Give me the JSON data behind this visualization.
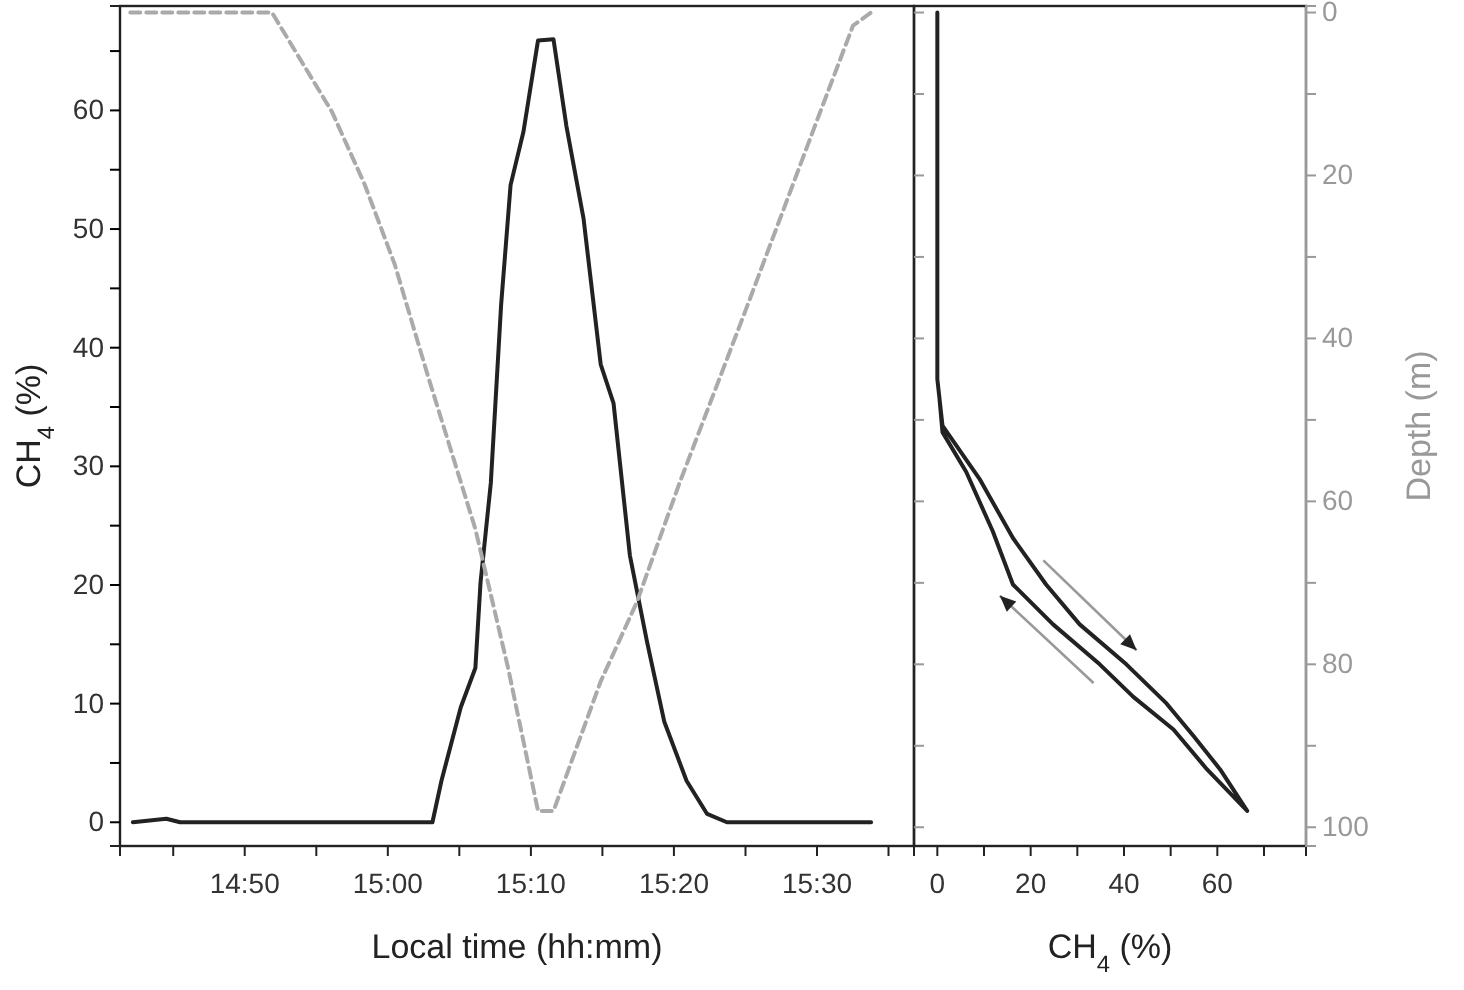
{
  "chart_data": [
    {
      "type": "line",
      "xlabel": "Local time (hh:mm)",
      "ylabel": "CH$_{4}$ (%)",
      "xlim": [
        14.688,
        15.613
      ],
      "xticks": [
        {
          "value": 14.75,
          "label": null
        },
        {
          "value": 14.8333,
          "label": "14:50"
        },
        {
          "value": 14.9167,
          "label": null
        },
        {
          "value": 15,
          "label": "15:00"
        },
        {
          "value": 15.0833,
          "label": null
        },
        {
          "value": 15.1667,
          "label": "15:10"
        },
        {
          "value": 15.25,
          "label": null
        },
        {
          "value": 15.3333,
          "label": "15:20"
        },
        {
          "value": 15.4167,
          "label": null
        },
        {
          "value": 15.5,
          "label": "15:30"
        },
        {
          "value": 15.5833,
          "label": null
        }
      ],
      "ylim": [
        -2,
        68.8
      ],
      "yticks": [
        0,
        {
          "value": 5,
          "label": null
        },
        10,
        {
          "value": 15,
          "label": null
        },
        20,
        {
          "value": 25,
          "label": null
        },
        30,
        {
          "value": 35,
          "label": null
        },
        40,
        {
          "value": 45,
          "label": null
        },
        50,
        {
          "value": 55,
          "label": null
        },
        60,
        {
          "value": 65,
          "label": null
        }
      ],
      "y2lim": [
        102.3,
        -0.8
      ],
      "grid": false,
      "series": [
        {
          "color": "#222222",
          "line_style": "solid",
          "x": [
            14.703,
            14.742,
            14.758,
            15.052,
            15.0625,
            15.085,
            15.102,
            15.108,
            15.12,
            15.132,
            15.143,
            15.158,
            15.175,
            15.193,
            15.208,
            15.228,
            15.248,
            15.263,
            15.282,
            15.302,
            15.322,
            15.348,
            15.372,
            15.395,
            15.563
          ],
          "values": [
            0,
            0.3,
            0,
            0,
            3.5,
            9.7,
            13,
            20.2,
            28.6,
            43.6,
            53.7,
            58.2,
            65.9,
            66,
            58.7,
            50.9,
            38.6,
            35.3,
            22.5,
            15.2,
            8.5,
            3.5,
            0.7,
            0,
            0
          ]
        },
        {
          "color": "#aaaaaa",
          "line_style": "dashed",
          "axis": "y2",
          "x": [
            14.7,
            14.865,
            14.935,
            14.973,
            15.008,
            15.047,
            15.102,
            15.14,
            15.175,
            15.193,
            15.248,
            15.29,
            15.34,
            15.417,
            15.498,
            15.542,
            15.563
          ],
          "values": [
            0,
            0,
            12.2,
            21.1,
            30.9,
            44.7,
            63.4,
            80.4,
            98,
            98,
            82.1,
            72.4,
            57.7,
            36.5,
            13.8,
            1.6,
            0
          ]
        }
      ]
    },
    {
      "type": "line",
      "xlabel": "CH$_{4}$ (%)",
      "y2label": "Depth (m)",
      "xlim": [
        -5,
        79
      ],
      "xticks": [
        0,
        {
          "value": 10,
          "label": null
        },
        20,
        {
          "value": 30,
          "label": null
        },
        40,
        {
          "value": 50,
          "label": null
        },
        60,
        {
          "value": 70,
          "label": null
        }
      ],
      "y2lim": [
        102.3,
        -0.8
      ],
      "y2ticks": [
        0,
        {
          "value": 10,
          "label": null
        },
        20,
        {
          "value": 30,
          "label": null
        },
        40,
        {
          "value": 50,
          "label": null
        },
        60,
        {
          "value": 70,
          "label": null
        },
        80,
        {
          "value": 90,
          "label": null
        },
        100
      ],
      "grid": false,
      "series": [
        {
          "color": "#222222",
          "line_style": "solid",
          "axis": "y2",
          "x": [
            0,
            0,
            1.1,
            9,
            16.2,
            23.3,
            30.5,
            40.5,
            49.1,
            54.9,
            60.6,
            66.4,
            57.8,
            50.6,
            42,
            34.8,
            24.8,
            16.2,
            11.9,
            6.2,
            1.1,
            0.4
          ],
          "values": [
            0,
            45,
            50.7,
            57.2,
            64.5,
            70.2,
            75.1,
            80,
            84.8,
            88.8,
            92.9,
            98,
            92.9,
            88,
            84,
            80,
            75.1,
            70.2,
            63.7,
            56.4,
            51.5,
            47
          ]
        }
      ]
    }
  ]
}
